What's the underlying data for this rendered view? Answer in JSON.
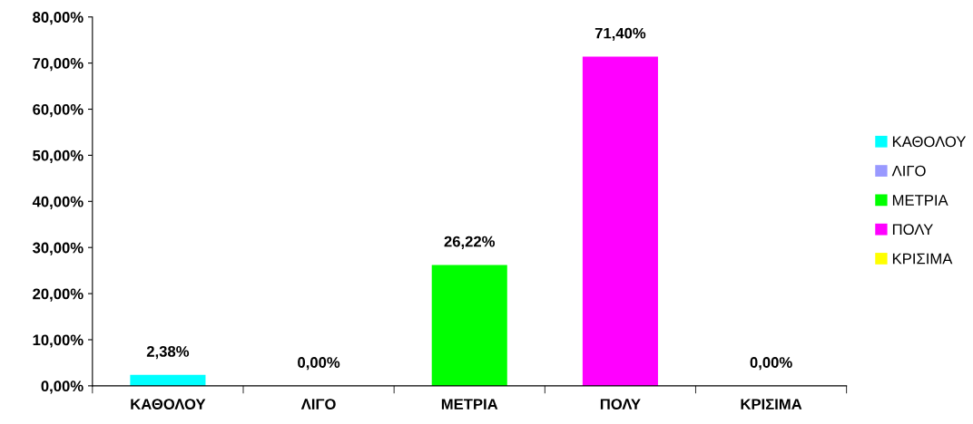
{
  "chart_data": {
    "type": "bar",
    "categories": [
      "ΚΑΘΟΛΟΥ",
      "ΛΙΓΟ",
      "ΜΕΤΡΙΑ",
      "ΠΟΛΥ",
      "ΚΡΙΣΙΜΑ"
    ],
    "series": [
      {
        "name": "ΚΑΘΟΛΟΥ",
        "color": "#00ffff",
        "values": [
          2.38,
          null,
          null,
          null,
          null
        ],
        "value_labels": [
          "2,38%",
          null,
          null,
          null,
          null
        ]
      },
      {
        "name": "ΛΙΓΟ",
        "color": "#9999ff",
        "values": [
          null,
          0,
          null,
          null,
          null
        ],
        "value_labels": [
          null,
          "0,00%",
          null,
          null,
          null
        ]
      },
      {
        "name": "ΜΕΤΡΙΑ",
        "color": "#00ff00",
        "values": [
          null,
          null,
          26.22,
          null,
          null
        ],
        "value_labels": [
          null,
          null,
          "26,22%",
          null,
          null
        ]
      },
      {
        "name": "ΠΟΛΥ",
        "color": "#ff00ff",
        "values": [
          null,
          null,
          null,
          71.4,
          null
        ],
        "value_labels": [
          null,
          null,
          null,
          "71,40%",
          null
        ]
      },
      {
        "name": "ΚΡΙΣΙΜΑ",
        "color": "#ffff00",
        "values": [
          null,
          null,
          null,
          null,
          0
        ],
        "value_labels": [
          null,
          null,
          null,
          null,
          "0,00%"
        ]
      }
    ],
    "ylim": [
      0,
      80
    ],
    "yticks": [
      {
        "value": 0,
        "label": "0,00%"
      },
      {
        "value": 10,
        "label": "10,00%"
      },
      {
        "value": 20,
        "label": "20,00%"
      },
      {
        "value": 30,
        "label": "30,00%"
      },
      {
        "value": 40,
        "label": "40,00%"
      },
      {
        "value": 50,
        "label": "50,00%"
      },
      {
        "value": 60,
        "label": "60,00%"
      },
      {
        "value": 70,
        "label": "70,00%"
      },
      {
        "value": 80,
        "label": "80,00%"
      }
    ],
    "legend": "right"
  }
}
